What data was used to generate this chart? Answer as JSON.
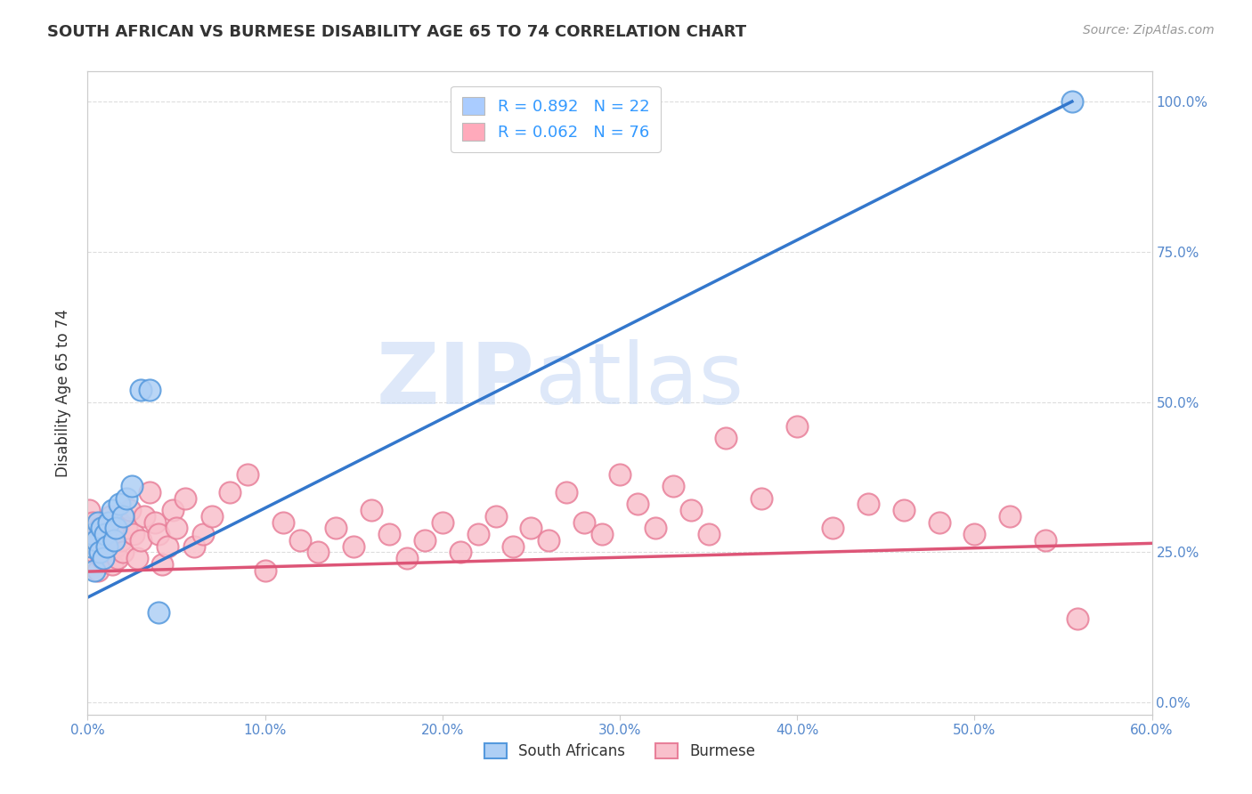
{
  "title": "SOUTH AFRICAN VS BURMESE DISABILITY AGE 65 TO 74 CORRELATION CHART",
  "source": "Source: ZipAtlas.com",
  "ylabel": "Disability Age 65 to 74",
  "xlim": [
    0.0,
    0.6
  ],
  "ylim": [
    -0.02,
    1.05
  ],
  "xticks": [
    0.0,
    0.1,
    0.2,
    0.3,
    0.4,
    0.5,
    0.6
  ],
  "xticklabels": [
    "0.0%",
    "10.0%",
    "20.0%",
    "30.0%",
    "40.0%",
    "50.0%",
    "60.0%"
  ],
  "yticks_right": [
    0.0,
    0.25,
    0.5,
    0.75,
    1.0
  ],
  "ytick_right_labels": [
    "0.0%",
    "25.0%",
    "50.0%",
    "75.0%",
    "100.0%"
  ],
  "grid_color": "#dddddd",
  "bg_color": "#ffffff",
  "watermark": "ZIPatlas",
  "watermark_color": "#c8daf5",
  "sa_fill": "#aecff5",
  "sa_edge": "#5599dd",
  "bu_fill": "#f9c0cc",
  "bu_edge": "#e8809a",
  "regression_blue": "#3377cc",
  "regression_pink": "#dd5577",
  "legend_box_blue": "#aaccff",
  "legend_box_pink": "#ffaabb",
  "R_blue": 0.892,
  "N_blue": 22,
  "R_pink": 0.062,
  "N_pink": 76,
  "blue_line_x0": 0.0,
  "blue_line_y0": 0.175,
  "blue_line_x1": 0.555,
  "blue_line_y1": 1.0,
  "pink_line_x0": 0.0,
  "pink_line_y0": 0.218,
  "pink_line_x1": 0.6,
  "pink_line_y1": 0.265,
  "south_african_x": [
    0.002,
    0.003,
    0.004,
    0.005,
    0.006,
    0.007,
    0.008,
    0.009,
    0.01,
    0.011,
    0.012,
    0.014,
    0.015,
    0.016,
    0.018,
    0.02,
    0.022,
    0.025,
    0.03,
    0.035,
    0.04,
    0.555
  ],
  "south_african_y": [
    0.26,
    0.28,
    0.22,
    0.27,
    0.3,
    0.25,
    0.29,
    0.24,
    0.28,
    0.26,
    0.3,
    0.32,
    0.27,
    0.29,
    0.33,
    0.31,
    0.34,
    0.36,
    0.52,
    0.52,
    0.15,
    1.0
  ],
  "burmese_x": [
    0.001,
    0.002,
    0.003,
    0.004,
    0.005,
    0.006,
    0.007,
    0.008,
    0.009,
    0.01,
    0.011,
    0.012,
    0.013,
    0.014,
    0.015,
    0.016,
    0.017,
    0.018,
    0.019,
    0.02,
    0.022,
    0.024,
    0.026,
    0.028,
    0.03,
    0.032,
    0.035,
    0.038,
    0.04,
    0.042,
    0.045,
    0.048,
    0.05,
    0.055,
    0.06,
    0.065,
    0.07,
    0.08,
    0.09,
    0.1,
    0.11,
    0.12,
    0.13,
    0.14,
    0.15,
    0.16,
    0.17,
    0.18,
    0.19,
    0.2,
    0.21,
    0.22,
    0.23,
    0.24,
    0.25,
    0.26,
    0.27,
    0.28,
    0.29,
    0.3,
    0.31,
    0.32,
    0.33,
    0.34,
    0.35,
    0.36,
    0.38,
    0.4,
    0.42,
    0.44,
    0.46,
    0.48,
    0.5,
    0.52,
    0.54,
    0.558
  ],
  "burmese_y": [
    0.32,
    0.28,
    0.3,
    0.25,
    0.27,
    0.22,
    0.29,
    0.24,
    0.26,
    0.27,
    0.25,
    0.29,
    0.31,
    0.23,
    0.28,
    0.26,
    0.24,
    0.3,
    0.27,
    0.25,
    0.29,
    0.32,
    0.28,
    0.24,
    0.27,
    0.31,
    0.35,
    0.3,
    0.28,
    0.23,
    0.26,
    0.32,
    0.29,
    0.34,
    0.26,
    0.28,
    0.31,
    0.35,
    0.38,
    0.22,
    0.3,
    0.27,
    0.25,
    0.29,
    0.26,
    0.32,
    0.28,
    0.24,
    0.27,
    0.3,
    0.25,
    0.28,
    0.31,
    0.26,
    0.29,
    0.27,
    0.35,
    0.3,
    0.28,
    0.38,
    0.33,
    0.29,
    0.36,
    0.32,
    0.28,
    0.44,
    0.34,
    0.46,
    0.29,
    0.33,
    0.32,
    0.3,
    0.28,
    0.31,
    0.27,
    0.14
  ],
  "title_fontsize": 13,
  "source_fontsize": 10,
  "tick_fontsize": 11,
  "legend_fontsize": 13
}
